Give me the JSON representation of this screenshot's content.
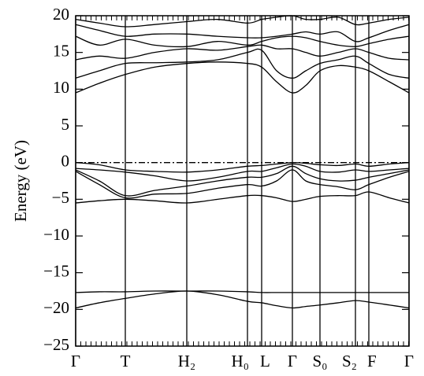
{
  "chart_data": {
    "type": "line",
    "ylabel": "Energy (eV)",
    "ylim": [
      -25,
      20
    ],
    "yticks": [
      {
        "value": -25,
        "label": "−25"
      },
      {
        "value": -20,
        "label": "−20"
      },
      {
        "value": -15,
        "label": "−15"
      },
      {
        "value": -10,
        "label": "−10"
      },
      {
        "value": -5,
        "label": "−5"
      },
      0,
      5,
      10,
      15,
      20
    ],
    "xlim": [
      0,
      423
    ],
    "xticks": [
      {
        "value": 0,
        "label": "Γ"
      },
      {
        "value": 63,
        "label": "T"
      },
      {
        "value": 141,
        "label": "H₂"
      },
      {
        "value": 218,
        "label": "H₀"
      },
      {
        "value": 236,
        "label": "L"
      },
      {
        "value": 275,
        "label": "Γ"
      },
      {
        "value": 310,
        "label": "S₀"
      },
      {
        "value": 355,
        "label": "S₂"
      },
      {
        "value": 372,
        "label": "F"
      },
      {
        "value": 423,
        "label": "Γ"
      }
    ],
    "fermi_level": 0,
    "color": "#000000",
    "x": [
      0,
      30,
      63,
      100,
      141,
      180,
      218,
      236,
      255,
      275,
      292,
      310,
      333,
      355,
      372,
      398,
      423
    ],
    "series": [
      {
        "values": [
          -17.7,
          -17.6,
          -17.6,
          -17.5,
          -17.5,
          -17.5,
          -17.6,
          -17.7,
          -17.7,
          -17.7,
          -17.7,
          -17.7,
          -17.7,
          -17.7,
          -17.7,
          -17.7,
          -17.7
        ]
      },
      {
        "values": [
          -19.8,
          -19.1,
          -18.5,
          -17.9,
          -17.5,
          -18.0,
          -18.9,
          -19.1,
          -19.5,
          -19.8,
          -19.6,
          -19.4,
          -19.1,
          -18.8,
          -19.0,
          -19.4,
          -19.8
        ]
      },
      {
        "values": [
          0,
          -0.3,
          -1.0,
          -1.2,
          -1.3,
          -1.0,
          -0.5,
          -0.4,
          -0.2,
          0,
          -0.1,
          -0.3,
          -0.4,
          -0.2,
          -0.5,
          -0.2,
          0
        ]
      },
      {
        "values": [
          -0.8,
          -1.0,
          -1.3,
          -1.8,
          -2.5,
          -2.0,
          -1.2,
          -1.2,
          -0.7,
          -0.2,
          -0.5,
          -1.2,
          -1.3,
          -1.0,
          -1.2,
          -1.0,
          -0.8
        ]
      },
      {
        "values": [
          -1.0,
          -2.5,
          -4.5,
          -3.8,
          -3.2,
          -2.5,
          -2.0,
          -2.0,
          -1.5,
          -0.5,
          -1.5,
          -2.2,
          -2.5,
          -2.4,
          -2.0,
          -1.5,
          -1.0
        ]
      },
      {
        "values": [
          -1.2,
          -3.0,
          -4.8,
          -4.3,
          -4.2,
          -3.5,
          -3.0,
          -3.2,
          -2.5,
          -1.0,
          -2.5,
          -3.0,
          -3.3,
          -3.7,
          -3.0,
          -2.0,
          -1.2
        ]
      },
      {
        "values": [
          -5.5,
          -5.2,
          -5.0,
          -5.2,
          -5.5,
          -5.0,
          -4.5,
          -4.5,
          -4.8,
          -5.3,
          -5.0,
          -4.6,
          -4.5,
          -4.5,
          -4.0,
          -4.8,
          -5.5
        ]
      },
      {
        "values": [
          9.5,
          10.8,
          12.0,
          13.0,
          13.5,
          13.7,
          13.5,
          13.0,
          11.0,
          9.5,
          10.5,
          12.5,
          13.2,
          13.0,
          12.5,
          11.0,
          9.5
        ]
      },
      {
        "values": [
          11.5,
          12.5,
          13.5,
          13.6,
          13.7,
          14.0,
          15.0,
          15.3,
          12.5,
          11.5,
          12.5,
          13.5,
          14.0,
          14.5,
          13.5,
          12.0,
          11.5
        ]
      },
      {
        "values": [
          14.0,
          14.5,
          14.2,
          15.0,
          15.5,
          15.3,
          15.8,
          16.0,
          15.5,
          15.5,
          15.0,
          14.5,
          15.0,
          15.5,
          15.0,
          14.2,
          14.0
        ]
      },
      {
        "values": [
          17.2,
          16.0,
          16.8,
          16.0,
          15.8,
          16.5,
          16.0,
          16.5,
          17.0,
          17.2,
          17.0,
          16.5,
          16.0,
          15.8,
          16.2,
          16.8,
          17.2
        ]
      },
      {
        "values": [
          18.8,
          18.0,
          17.2,
          17.5,
          17.5,
          17.2,
          17.0,
          17.0,
          17.2,
          17.5,
          17.8,
          17.5,
          17.8,
          16.5,
          17.0,
          18.0,
          18.8
        ]
      },
      {
        "values": [
          19.5,
          19.0,
          18.5,
          18.8,
          19.2,
          19.5,
          19.0,
          19.5,
          19.8,
          20,
          19.5,
          19.5,
          19.8,
          18.8,
          19.0,
          19.5,
          19.8
        ]
      }
    ]
  }
}
